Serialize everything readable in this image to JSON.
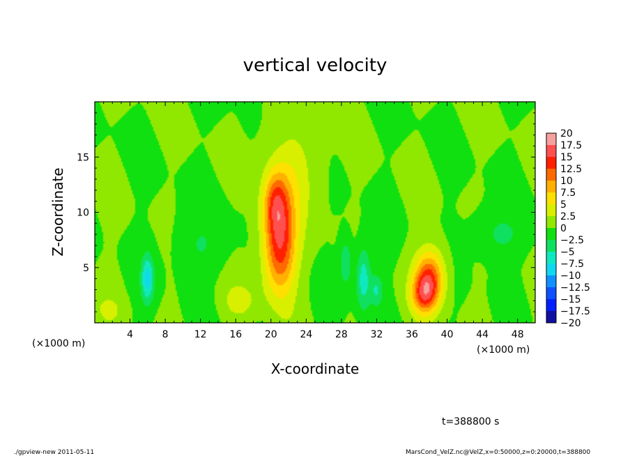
{
  "chart_data": {
    "type": "heatmap",
    "title": "vertical velocity",
    "xlabel": "X-coordinate",
    "ylabel": "Z-coordinate",
    "x_unit": "(×1000 m)",
    "y_unit": "(×1000 m)",
    "xlim": [
      0,
      50
    ],
    "ylim": [
      0,
      20
    ],
    "xticks": [
      4,
      8,
      12,
      16,
      20,
      24,
      28,
      32,
      36,
      40,
      44,
      48
    ],
    "xtick_labels": [
      "4",
      "8",
      "12",
      "16",
      "20",
      "24",
      "28",
      "32",
      "36",
      "40",
      "44",
      "48"
    ],
    "yticks": [
      5,
      10,
      15
    ],
    "ytick_labels": [
      "5",
      "10",
      "15"
    ],
    "colorbar": {
      "levels": [
        20,
        17.5,
        15,
        12.5,
        10,
        7.5,
        5,
        2.5,
        0,
        -2.5,
        -5,
        -7.5,
        -10,
        -12.5,
        -15,
        -17.5,
        -20
      ],
      "labels": [
        "20",
        "17.5",
        "15",
        "12.5",
        "10",
        "7.5",
        "5",
        "2.5",
        "0",
        "−2.5",
        "−5",
        "−7.5",
        "−10",
        "−12.5",
        "−15",
        "−17.5",
        "−20"
      ],
      "colors": [
        "#f7a0a0",
        "#ff5050",
        "#ff2000",
        "#ff6a00",
        "#ffb000",
        "#ffe000",
        "#d8f000",
        "#90e800",
        "#10e010",
        "#10e060",
        "#10e8c0",
        "#10d8f0",
        "#1090ff",
        "#1050ff",
        "#0020ff",
        "#1010a0",
        "#6a10b0"
      ]
    },
    "field_features": [
      {
        "kind": "updraft",
        "x": 21,
        "z": 7,
        "peak": 14,
        "sx": 1.3,
        "sz": 3.2
      },
      {
        "kind": "updraft",
        "x": 20.5,
        "z": 11,
        "peak": 8,
        "sx": 1.0,
        "sz": 2.0
      },
      {
        "kind": "updraft",
        "x": 38,
        "z": 4,
        "peak": 13,
        "sx": 1.2,
        "sz": 1.8
      },
      {
        "kind": "updraft",
        "x": 37.3,
        "z": 2.5,
        "peak": 8,
        "sx": 1.0,
        "sz": 1.2
      },
      {
        "kind": "updraft",
        "x": 22.5,
        "z": 13,
        "peak": 4,
        "sx": 1.8,
        "sz": 3.5
      },
      {
        "kind": "updraft",
        "x": 16.5,
        "z": 2,
        "peak": 3,
        "sx": 1.5,
        "sz": 1.2
      },
      {
        "kind": "updraft",
        "x": 1.5,
        "z": 1.2,
        "peak": 2.5,
        "sx": 1.0,
        "sz": 0.8
      },
      {
        "kind": "downdraft",
        "x": 6,
        "z": 4,
        "peak": -8,
        "sx": 0.5,
        "sz": 1.5
      },
      {
        "kind": "downdraft",
        "x": 30.5,
        "z": 4,
        "peak": -7,
        "sx": 0.6,
        "sz": 2.0
      },
      {
        "kind": "downdraft",
        "x": 28.5,
        "z": 5.5,
        "peak": -5,
        "sx": 0.5,
        "sz": 1.5
      },
      {
        "kind": "downdraft",
        "x": 32,
        "z": 3,
        "peak": -5,
        "sx": 0.5,
        "sz": 1.0
      },
      {
        "kind": "downdraft",
        "x": 46,
        "z": 8,
        "peak": -3,
        "sx": 2.0,
        "sz": 1.5
      },
      {
        "kind": "downdraft",
        "x": 12,
        "z": 7,
        "peak": -2.5,
        "sx": 2.0,
        "sz": 2.0
      }
    ]
  },
  "time_label": "t=388800 s",
  "footer_left": "./gpview-new   2011-05-11",
  "footer_right": "MarsCond_VelZ.nc@VelZ,x=0:50000,z=0:20000,t=388800"
}
